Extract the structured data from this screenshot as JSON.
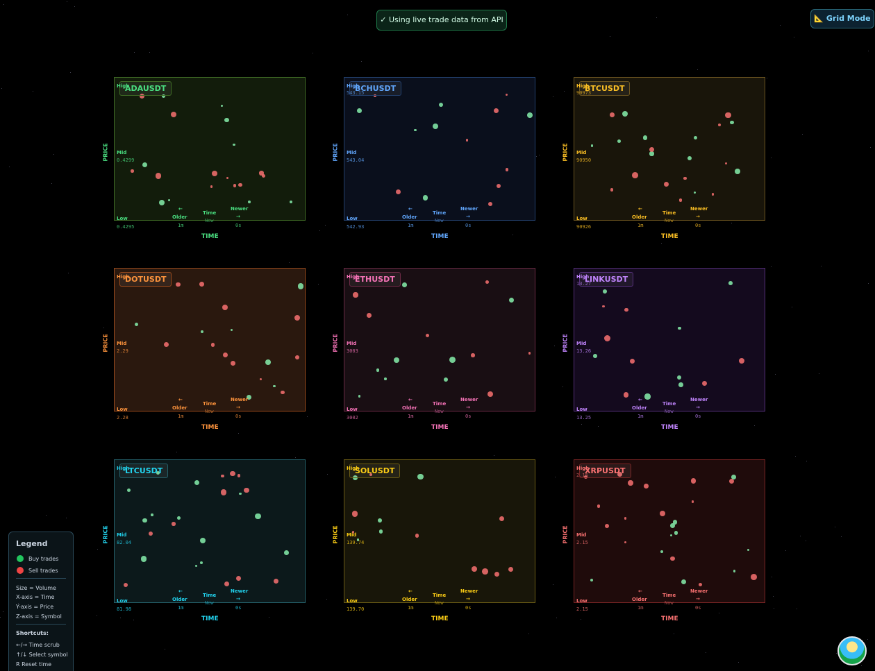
{
  "banner": {
    "text": "✓  Using live trade data from API"
  },
  "grid_mode": {
    "label": "📐 Grid Mode"
  },
  "panels": [
    {
      "symbol": "ADAUSDT",
      "color": "#4ade80",
      "border": "#3f6b25",
      "bg": "#121c0b",
      "axis_label": "PRICE",
      "time_label": "TIME",
      "high_label": "High",
      "mid_label": "Mid",
      "mid_value": "0.4299",
      "low_label": "Low",
      "low_value": "0.4295",
      "older_arrow": "←",
      "older": "Older",
      "time": "Time",
      "now": "Now",
      "newer": "Newer",
      "newer_arrow": "→",
      "left_ago": "1m",
      "right_ago": "0s"
    },
    {
      "symbol": "BCHUSDT",
      "color": "#60a5fa",
      "border": "#23406e",
      "bg": "#0a0f1c",
      "axis_label": "PRICE",
      "time_label": "TIME",
      "high_label": "High",
      "high_value": "543.15",
      "mid_label": "Mid",
      "mid_value": "543.04",
      "low_label": "Low",
      "low_value": "542.93",
      "older_arrow": "←",
      "older": "Older",
      "time": "Time",
      "now": "Now",
      "newer": "Newer",
      "newer_arrow": "→",
      "left_ago": "1m",
      "right_ago": "0s"
    },
    {
      "symbol": "BTCUSDT",
      "color": "#fbbf24",
      "border": "#6b5420",
      "bg": "#19150a",
      "axis_label": "PRICE",
      "time_label": "TIME",
      "high_label": "High",
      "high_value": "90973",
      "mid_label": "Mid",
      "mid_value": "90950",
      "low_label": "Low",
      "low_value": "90926",
      "older_arrow": "←",
      "older": "Older",
      "time": "Time",
      "now": "Now",
      "newer": "Newer",
      "newer_arrow": "→",
      "left_ago": "1m",
      "right_ago": "0s"
    },
    {
      "symbol": "DOTUSDT",
      "color": "#fb923c",
      "border": "#9a4a1c",
      "bg": "#2a180e",
      "axis_label": "PRICE",
      "time_label": "TIME",
      "high_label": "High",
      "mid_label": "Mid",
      "mid_value": "2.29",
      "low_label": "Low",
      "low_value": "2.28",
      "older_arrow": "←",
      "older": "Older",
      "time": "Time",
      "now": "Now",
      "newer": "Newer",
      "newer_arrow": "→",
      "left_ago": "1m",
      "right_ago": "0s"
    },
    {
      "symbol": "ETHUSDT",
      "color": "#f472b6",
      "border": "#6b2a45",
      "bg": "#190e13",
      "axis_label": "PRICE",
      "time_label": "TIME",
      "high_label": "High",
      "mid_label": "Mid",
      "mid_value": "3003",
      "low_label": "Low",
      "low_value": "3002",
      "older_arrow": "←",
      "older": "Older",
      "time": "Time",
      "now": "Now",
      "newer": "Newer",
      "newer_arrow": "→",
      "left_ago": "1m",
      "right_ago": "0s"
    },
    {
      "symbol": "LINKUSDT",
      "color": "#c084fc",
      "border": "#55307a",
      "bg": "#140a1e",
      "axis_label": "PRICE",
      "time_label": "TIME",
      "high_label": "High",
      "high_value": "13.27",
      "mid_label": "Mid",
      "mid_value": "13.26",
      "low_label": "Low",
      "low_value": "13.25",
      "older_arrow": "←",
      "older": "Older",
      "time": "Time",
      "now": "Now",
      "newer": "Newer",
      "newer_arrow": "→",
      "left_ago": "1m",
      "right_ago": "0s"
    },
    {
      "symbol": "LTCUSDT",
      "color": "#22d3ee",
      "border": "#24606a",
      "bg": "#0c191b",
      "axis_label": "PRICE",
      "time_label": "TIME",
      "high_label": "High",
      "mid_label": "Mid",
      "mid_value": "82.04",
      "low_label": "Low",
      "low_value": "81.98",
      "older_arrow": "←",
      "older": "Older",
      "time": "Time",
      "now": "Now",
      "newer": "Newer",
      "newer_arrow": "→",
      "left_ago": "1m",
      "right_ago": "0s"
    },
    {
      "symbol": "SOLUSDT",
      "color": "#facc15",
      "border": "#6b5c14",
      "bg": "#181609",
      "axis_label": "PRICE",
      "time_label": "TIME",
      "high_label": "High",
      "mid_label": "Mid",
      "mid_value": "139.74",
      "low_label": "Low",
      "low_value": "139.70",
      "older_arrow": "←",
      "older": "Older",
      "time": "Time",
      "now": "Now",
      "newer": "Newer",
      "newer_arrow": "→",
      "left_ago": "1m",
      "right_ago": "0s"
    },
    {
      "symbol": "XRPUSDT",
      "color": "#f87171",
      "border": "#7a2424",
      "bg": "#1f0b0b",
      "axis_label": "PRICE",
      "time_label": "TIME",
      "high_label": "High",
      "high_value": "2.15",
      "mid_label": "Mid",
      "mid_value": "2.15",
      "low_label": "Low",
      "low_value": "2.15",
      "older_arrow": "←",
      "older": "Older",
      "time": "Time",
      "now": "Now",
      "newer": "Newer",
      "newer_arrow": "→",
      "left_ago": "1m",
      "right_ago": "0s"
    }
  ],
  "legend": {
    "title": "Legend",
    "buy": "Buy trades",
    "sell": "Sell trades",
    "mappings": [
      "Size = Volume",
      "X-axis = Time",
      "Y-axis = Price",
      "Z-axis = Symbol"
    ],
    "shortcuts_title": "Shortcuts:",
    "shortcuts": [
      "←/→ Time scrub",
      "↑/↓ Select symbol",
      "R Reset time"
    ]
  }
}
